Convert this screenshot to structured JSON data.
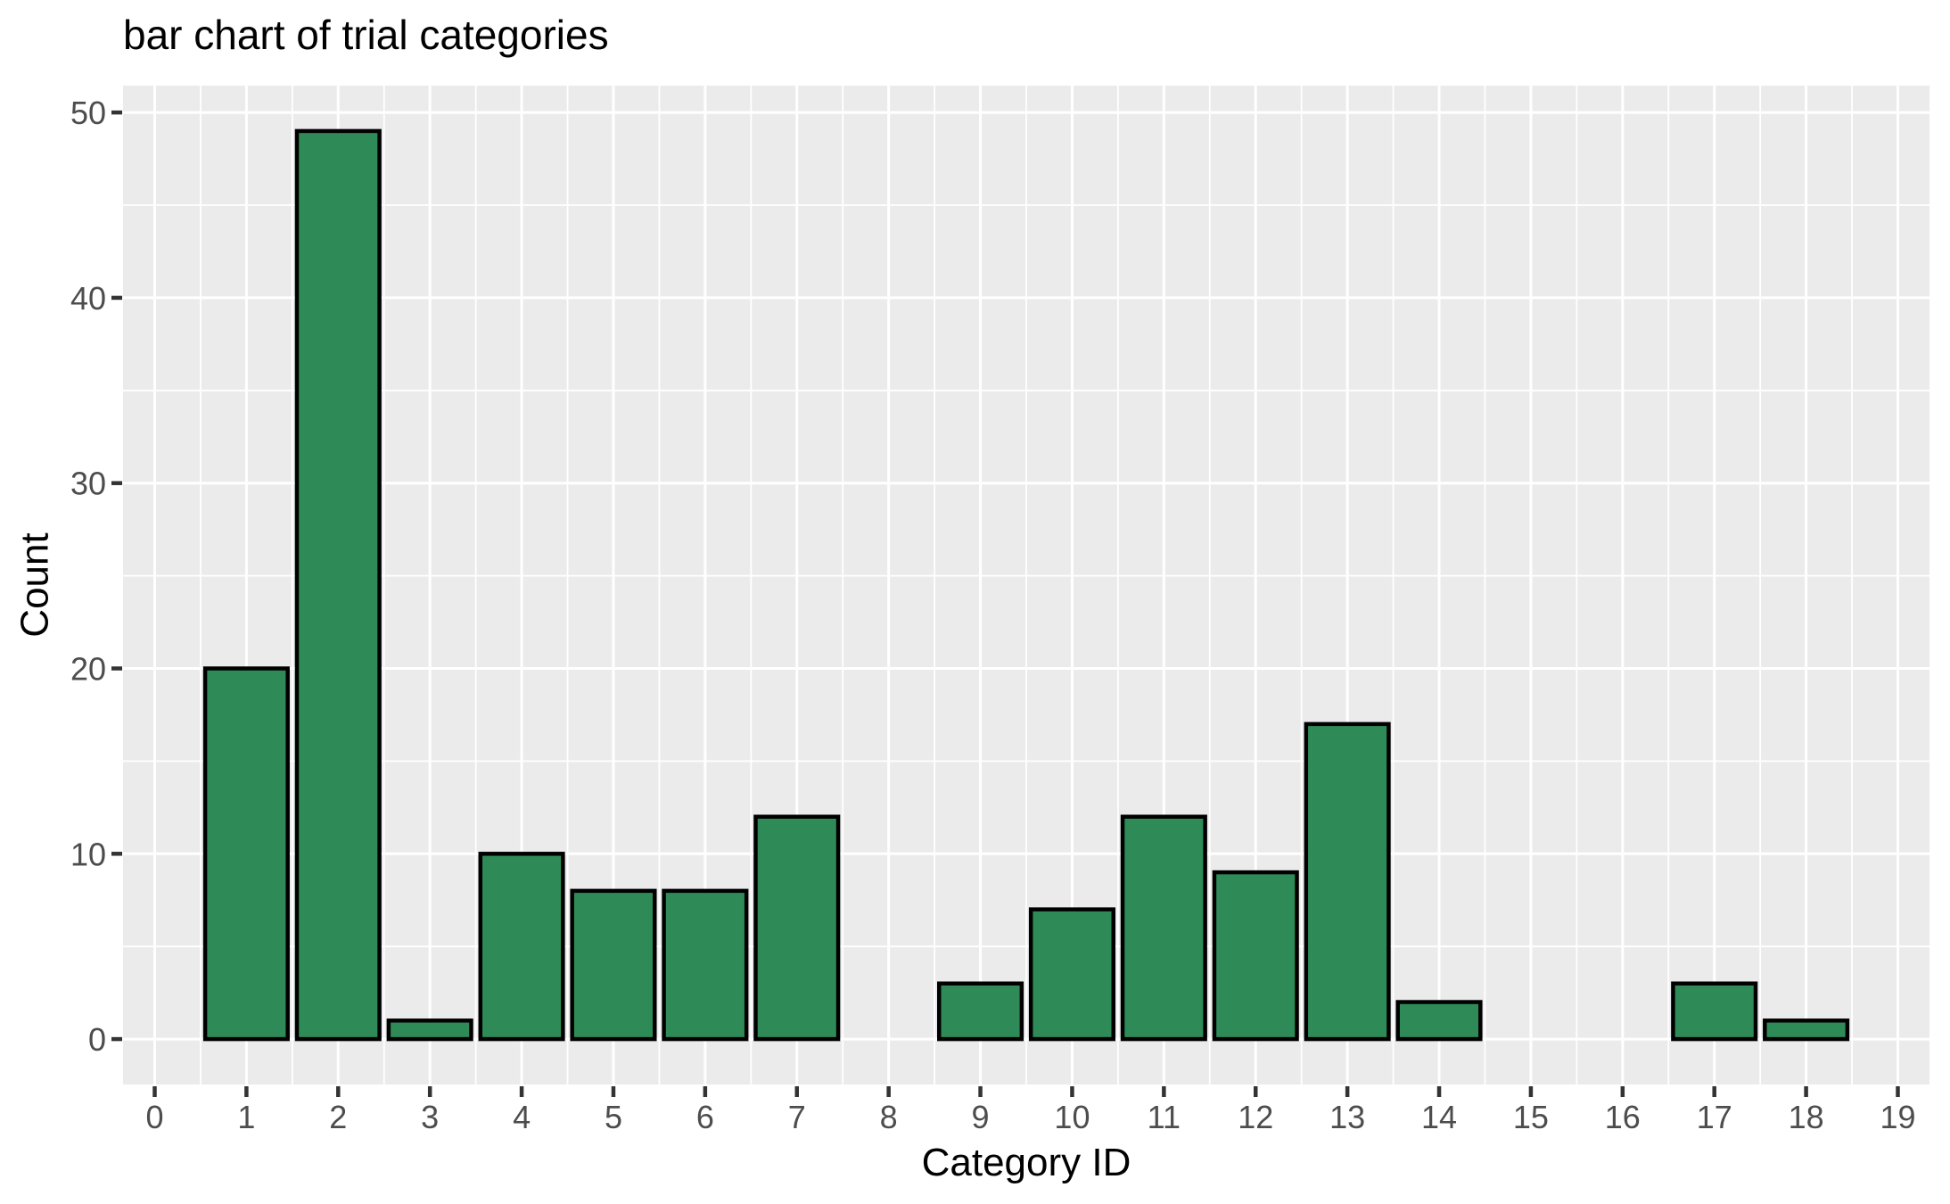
{
  "title": "bar chart of trial categories",
  "chart_data": {
    "type": "bar",
    "title": "bar chart of trial categories",
    "xlabel": "Category ID",
    "ylabel": "Count",
    "bars": [
      {
        "x": 1,
        "count": 20
      },
      {
        "x": 2,
        "count": 49
      },
      {
        "x": 3,
        "count": 1
      },
      {
        "x": 4,
        "count": 10
      },
      {
        "x": 5,
        "count": 8
      },
      {
        "x": 6,
        "count": 8
      },
      {
        "x": 7,
        "count": 12
      },
      {
        "x": 9,
        "count": 3
      },
      {
        "x": 10,
        "count": 7
      },
      {
        "x": 11,
        "count": 12
      },
      {
        "x": 12,
        "count": 9
      },
      {
        "x": 13,
        "count": 17
      },
      {
        "x": 14,
        "count": 2
      },
      {
        "x": 17,
        "count": 3
      },
      {
        "x": 18,
        "count": 1
      }
    ],
    "bar_width": 0.9,
    "x_ticks": [
      0,
      1,
      2,
      3,
      4,
      5,
      6,
      7,
      8,
      9,
      10,
      11,
      12,
      13,
      14,
      15,
      16,
      17,
      18,
      19
    ],
    "y_ticks": [
      0,
      10,
      20,
      30,
      40,
      50
    ],
    "xlim": [
      -0.345,
      19.345
    ],
    "ylim": [
      -2.45,
      51.45
    ],
    "grid": "major+minor",
    "legend": "none",
    "style": {
      "bar_fill": "#2E8B57",
      "bar_stroke": "#000000",
      "panel_bg": "#EBEBEB",
      "grid_color": "#FFFFFF",
      "tick_mark_color": "#333333",
      "tick_label_color": "#4D4D4D",
      "text_color": "#000000"
    }
  }
}
